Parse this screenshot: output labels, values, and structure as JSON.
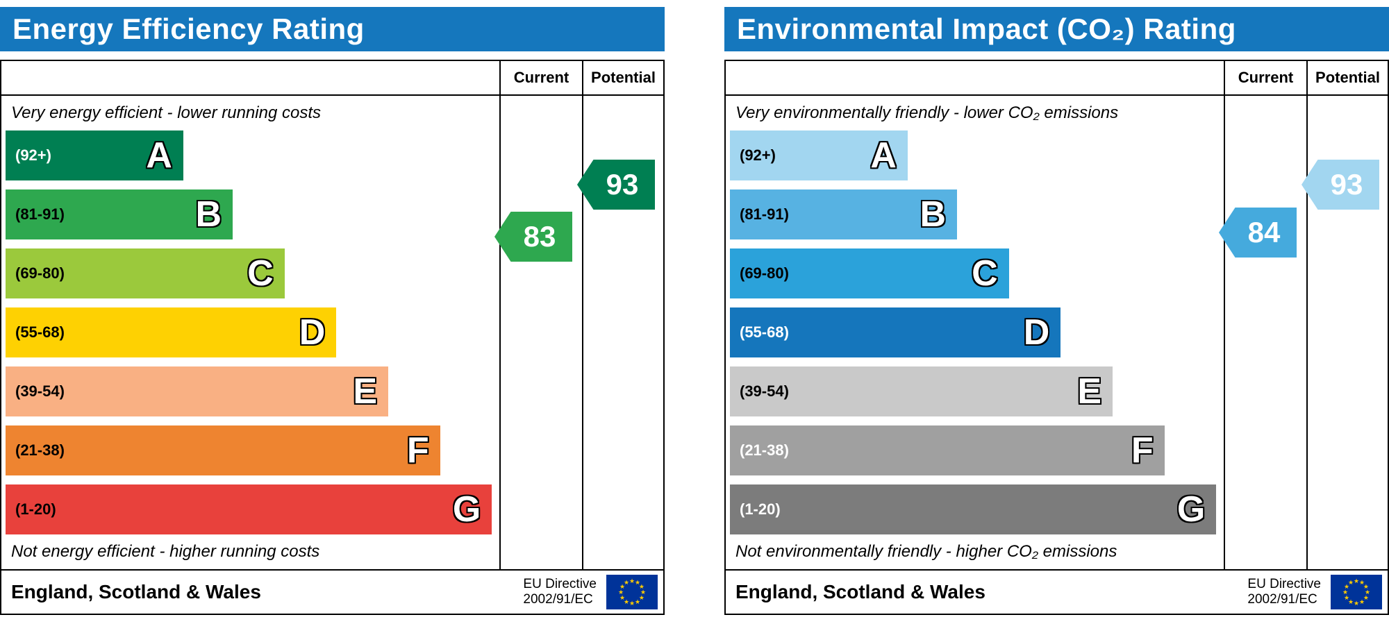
{
  "chart_data": [
    {
      "type": "bar",
      "title": "Energy Efficiency Rating",
      "categories": [
        "A (92+)",
        "B (81-91)",
        "C (69-80)",
        "D (55-68)",
        "E (39-54)",
        "F (21-38)",
        "G (1-20)"
      ],
      "values": {
        "current": 83,
        "potential": 93
      },
      "score_range": [
        1,
        100
      ],
      "top_label": "Very energy efficient - lower running costs",
      "bottom_label": "Not energy efficient - higher running costs",
      "region": "England, Scotland & Wales",
      "directive": "EU Directive 2002/91/EC",
      "legend_position": "none"
    },
    {
      "type": "bar",
      "title": "Environmental Impact (CO₂) Rating",
      "categories": [
        "A (92+)",
        "B (81-91)",
        "C (69-80)",
        "D (55-68)",
        "E (39-54)",
        "F (21-38)",
        "G (1-20)"
      ],
      "values": {
        "current": 84,
        "potential": 93
      },
      "score_range": [
        1,
        100
      ],
      "top_label": "Very environmentally friendly - lower CO₂ emissions",
      "bottom_label": "Not environmentally friendly - higher CO₂ emissions",
      "region": "England, Scotland & Wales",
      "directive": "EU Directive 2002/91/EC",
      "legend_position": "none"
    }
  ],
  "panels": [
    {
      "title": "Energy Efficiency Rating",
      "header_color": "#1577bd",
      "columns": {
        "current": "Current",
        "potential": "Potential"
      },
      "top_caption": "Very energy efficient - lower running costs",
      "bottom_caption": "Not energy efficient - higher running costs",
      "bands": [
        {
          "letter": "A",
          "range": "(92+)",
          "color": "#007f52",
          "range_color": "#ffffff",
          "width_pct": 36
        },
        {
          "letter": "B",
          "range": "(81-91)",
          "color": "#2ea84f",
          "range_color": "#000000",
          "width_pct": 46
        },
        {
          "letter": "C",
          "range": "(69-80)",
          "color": "#9bc93c",
          "range_color": "#000000",
          "width_pct": 56.5
        },
        {
          "letter": "D",
          "range": "(55-68)",
          "color": "#fed102",
          "range_color": "#000000",
          "width_pct": 67
        },
        {
          "letter": "E",
          "range": "(39-54)",
          "color": "#f9b083",
          "range_color": "#000000",
          "width_pct": 77.5
        },
        {
          "letter": "F",
          "range": "(21-38)",
          "color": "#ee8430",
          "range_color": "#000000",
          "width_pct": 88
        },
        {
          "letter": "G",
          "range": "(1-20)",
          "color": "#e8413c",
          "range_color": "#000000",
          "width_pct": 98.5
        }
      ],
      "current": {
        "value": "83",
        "color": "#2ea84f"
      },
      "potential": {
        "value": "93",
        "color": "#007f52"
      },
      "footer": {
        "region": "England, Scotland & Wales",
        "directive_line1": "EU Directive",
        "directive_line2": "2002/91/EC"
      },
      "eu_flag": {
        "field": "#003399",
        "stars": "#ffcc00"
      }
    },
    {
      "title": "Environmental Impact (CO₂) Rating",
      "header_color": "#1577bd",
      "columns": {
        "current": "Current",
        "potential": "Potential"
      },
      "top_caption": "Very environmentally friendly - lower CO₂ emissions",
      "bottom_caption": "Not environmentally friendly - higher CO₂ emissions",
      "bands": [
        {
          "letter": "A",
          "range": "(92+)",
          "color": "#a2d6f0",
          "range_color": "#000000",
          "width_pct": 36
        },
        {
          "letter": "B",
          "range": "(81-91)",
          "color": "#57b2e2",
          "range_color": "#000000",
          "width_pct": 46
        },
        {
          "letter": "C",
          "range": "(69-80)",
          "color": "#2ba2da",
          "range_color": "#000000",
          "width_pct": 56.5
        },
        {
          "letter": "D",
          "range": "(55-68)",
          "color": "#1576bc",
          "range_color": "#ffffff",
          "width_pct": 67
        },
        {
          "letter": "E",
          "range": "(39-54)",
          "color": "#c9c9c9",
          "range_color": "#000000",
          "width_pct": 77.5
        },
        {
          "letter": "F",
          "range": "(21-38)",
          "color": "#a0a0a0",
          "range_color": "#ffffff",
          "width_pct": 88
        },
        {
          "letter": "G",
          "range": "(1-20)",
          "color": "#7c7c7c",
          "range_color": "#ffffff",
          "width_pct": 98.5
        }
      ],
      "current": {
        "value": "84",
        "color": "#45aadd"
      },
      "potential": {
        "value": "93",
        "color": "#a2d6f0"
      },
      "footer": {
        "region": "England, Scotland & Wales",
        "directive_line1": "EU Directive",
        "directive_line2": "2002/91/EC"
      },
      "eu_flag": {
        "field": "#003399",
        "stars": "#ffcc00"
      }
    }
  ]
}
